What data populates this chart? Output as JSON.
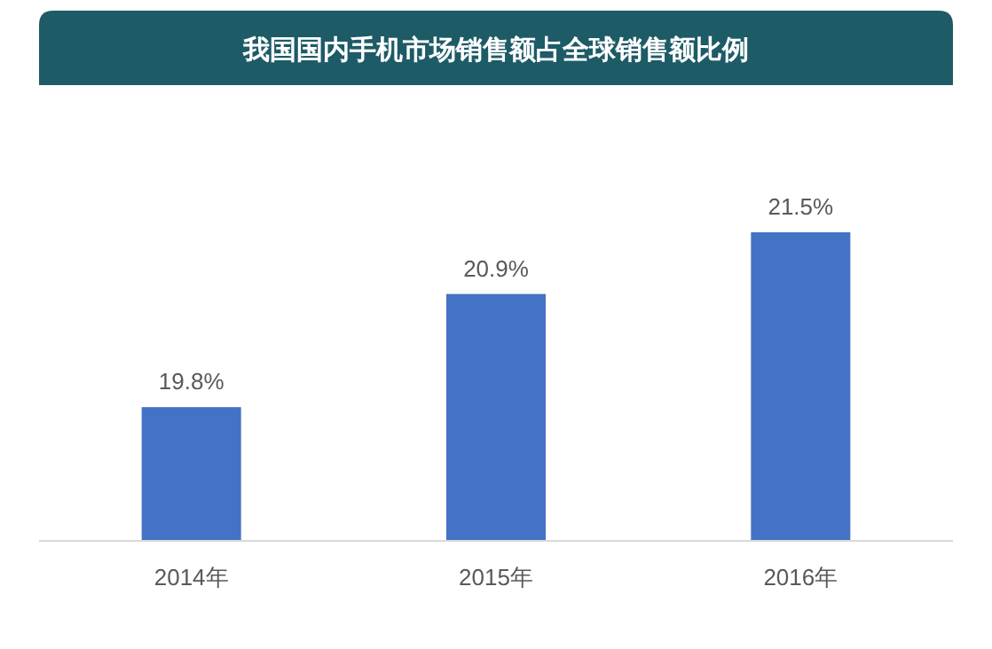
{
  "chart_data": {
    "type": "bar",
    "title": "我国国内手机市场销售额占全球销售额比例",
    "categories": [
      "2014年",
      "2015年",
      "2016年"
    ],
    "values": [
      19.8,
      20.9,
      21.5
    ],
    "value_labels": [
      "19.8%",
      "20.9%",
      "21.5%"
    ],
    "color": "#4472c4",
    "ylim": [
      18.5,
      21.5
    ],
    "tick_labels": "x"
  }
}
